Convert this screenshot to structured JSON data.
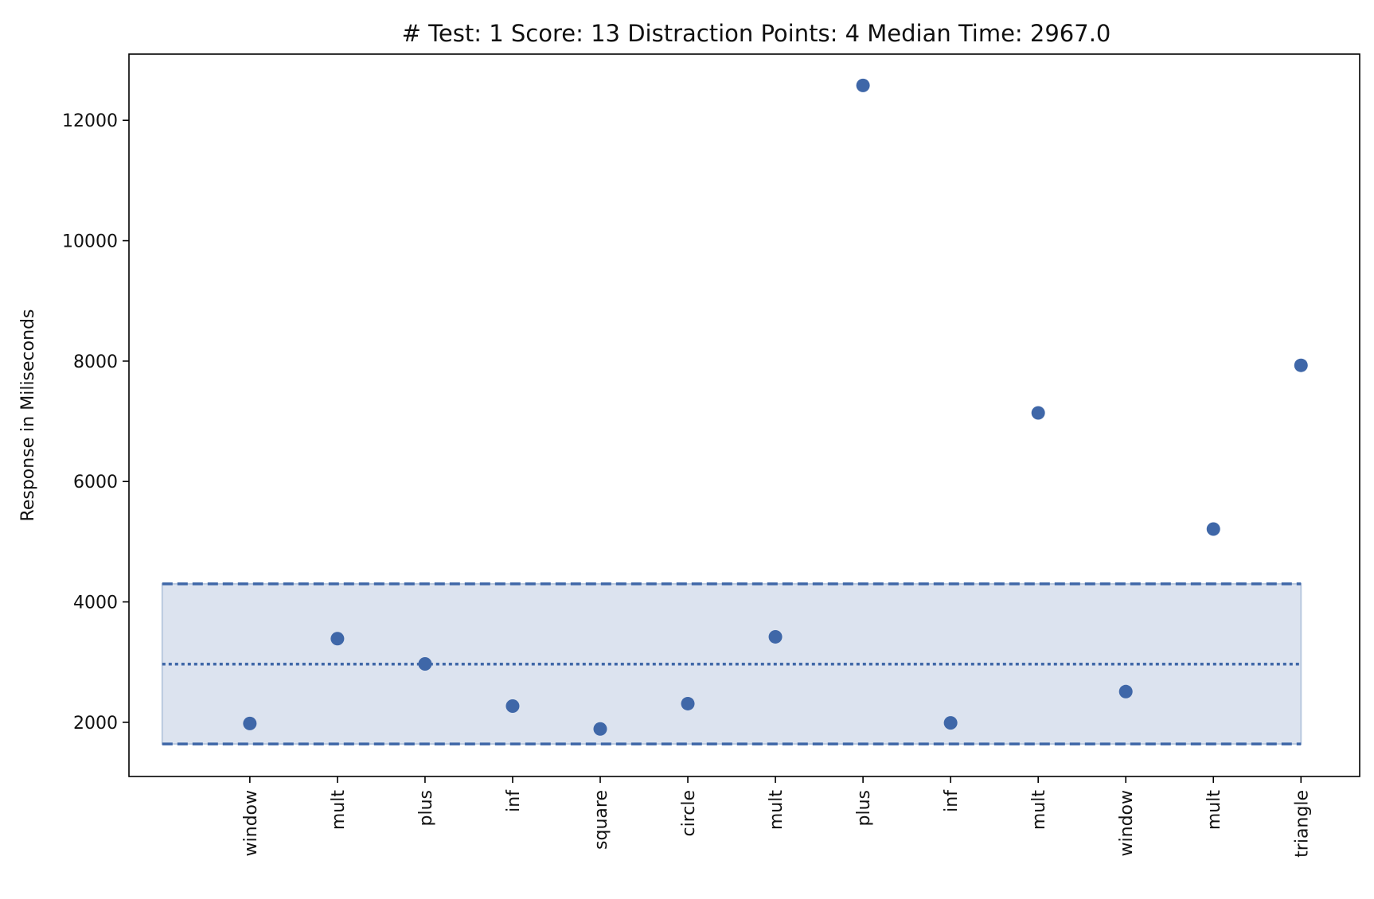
{
  "chart_data": {
    "type": "scatter",
    "title": "# Test: 1 Score: 13 Distraction Points: 4 Median Time: 2967.0",
    "xlabel": "",
    "ylabel": "Response in Miliseconds",
    "categories": [
      "window",
      "mult",
      "plus",
      "inf",
      "square",
      "circle",
      "mult",
      "plus",
      "inf",
      "mult",
      "window",
      "mult",
      "triangle"
    ],
    "x": [
      1,
      2,
      3,
      4,
      5,
      6,
      7,
      8,
      9,
      10,
      11,
      12,
      13
    ],
    "values": [
      1980,
      3390,
      2970,
      2270,
      1890,
      2310,
      3420,
      12580,
      1990,
      7140,
      2510,
      5210,
      7930
    ],
    "xlim": [
      -0.38,
      13.67
    ],
    "ylim": [
      1100,
      13100
    ],
    "yticks": [
      2000,
      4000,
      6000,
      8000,
      10000,
      12000
    ],
    "median_line": 2967.0,
    "band": {
      "lower": 1640,
      "upper": 4300,
      "x_start": 0,
      "x_end": 13
    },
    "grid": false,
    "colors": {
      "points": "#3f67a8",
      "band_fill": "#dce3ef",
      "band_edge": "#b9c9df",
      "lines": "#3f67a8"
    }
  }
}
